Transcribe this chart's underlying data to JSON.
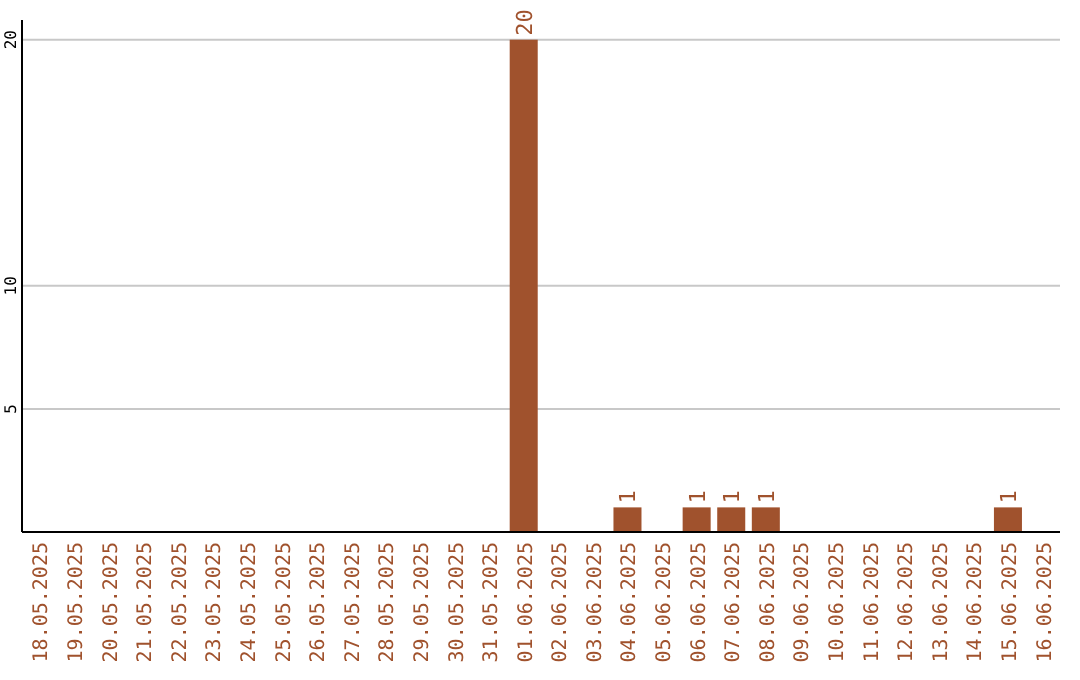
{
  "chart_data": {
    "type": "bar",
    "categories": [
      "18.05.2025",
      "19.05.2025",
      "20.05.2025",
      "21.05.2025",
      "22.05.2025",
      "23.05.2025",
      "24.05.2025",
      "25.05.2025",
      "26.05.2025",
      "27.05.2025",
      "28.05.2025",
      "29.05.2025",
      "30.05.2025",
      "31.05.2025",
      "01.06.2025",
      "02.06.2025",
      "03.06.2025",
      "04.06.2025",
      "05.06.2025",
      "06.06.2025",
      "07.06.2025",
      "08.06.2025",
      "09.06.2025",
      "10.06.2025",
      "11.06.2025",
      "12.06.2025",
      "13.06.2025",
      "14.06.2025",
      "15.06.2025",
      "16.06.2025"
    ],
    "values": [
      0,
      0,
      0,
      0,
      0,
      0,
      0,
      0,
      0,
      0,
      0,
      0,
      0,
      0,
      20,
      0,
      0,
      1,
      0,
      1,
      1,
      1,
      0,
      0,
      0,
      0,
      0,
      0,
      1,
      0
    ],
    "value_labels": [
      null,
      null,
      null,
      null,
      null,
      null,
      null,
      null,
      null,
      null,
      null,
      null,
      null,
      null,
      "20",
      null,
      null,
      "1",
      null,
      "1",
      "1",
      "1",
      null,
      null,
      null,
      null,
      null,
      null,
      "1",
      null
    ],
    "color": "#a0522d",
    "ylim": [
      0,
      20.8
    ],
    "yticks": [
      5,
      10,
      20
    ],
    "grid": "y"
  }
}
